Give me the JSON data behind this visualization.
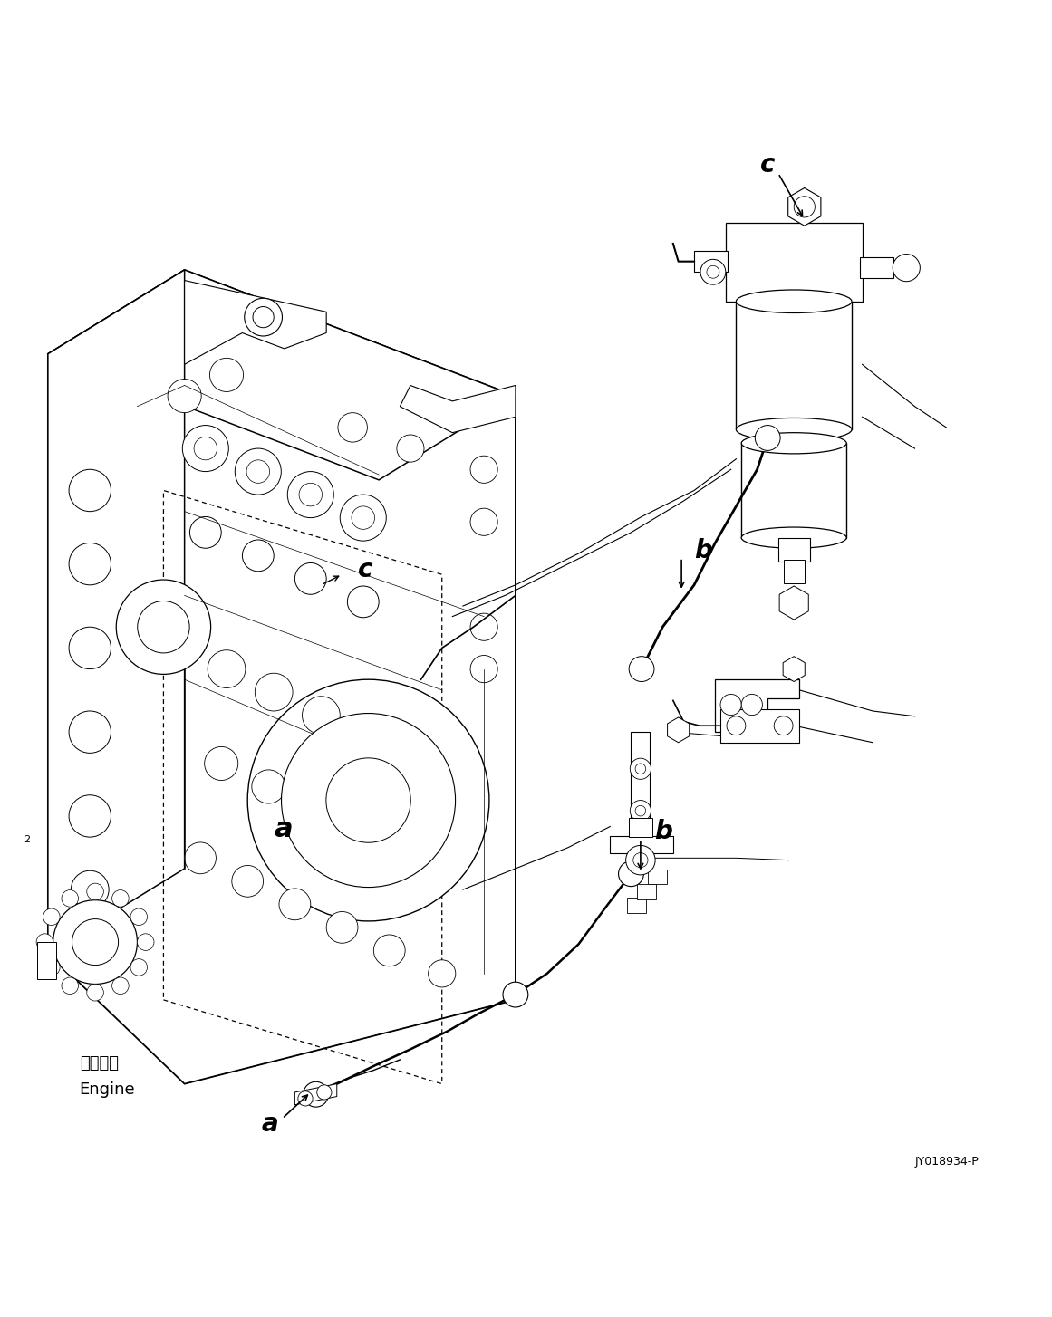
{
  "background_color": "#ffffff",
  "fig_width": 11.61,
  "fig_height": 14.54,
  "dpi": 100,
  "engine_label_jp": "エンジン",
  "engine_label_en": "Engine",
  "ref_code": "JY018934-P"
}
